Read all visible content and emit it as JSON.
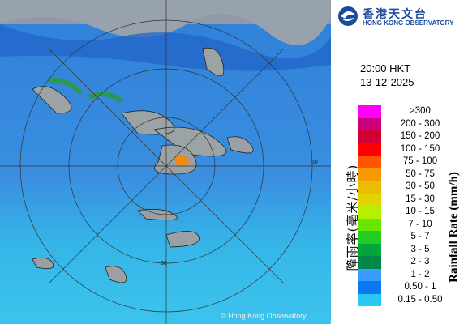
{
  "logo": {
    "chinese": "香港天文台",
    "english": "HONG KONG OBSERVATORY"
  },
  "time": "20:00 HKT",
  "date": "13-12-2025",
  "legend": {
    "title_chinese": "降雨率(毫米/小時)",
    "title_english": "Rainfall Rate (mm/h)",
    "items": [
      {
        "label": ">300",
        "color": "#ff00ff"
      },
      {
        "label": "200 - 300",
        "color": "#c8007a"
      },
      {
        "label": "150 - 200",
        "color": "#d20032"
      },
      {
        "label": "100 - 150",
        "color": "#ff0000"
      },
      {
        "label": "75 - 100",
        "color": "#ff5500"
      },
      {
        "label": "50 - 75",
        "color": "#f59a00"
      },
      {
        "label": "30 - 50",
        "color": "#ebbd00"
      },
      {
        "label": "15 - 30",
        "color": "#e2d400"
      },
      {
        "label": "10 - 15",
        "color": "#b4f000"
      },
      {
        "label": "7 - 10",
        "color": "#66e600"
      },
      {
        "label": "5 - 7",
        "color": "#22cc22"
      },
      {
        "label": "3 - 5",
        "color": "#00a63c"
      },
      {
        "label": "2 - 3",
        "color": "#00884a"
      },
      {
        "label": "1 - 2",
        "color": "#3c9bff"
      },
      {
        "label": "0.50 - 1",
        "color": "#0a78f0"
      },
      {
        "label": "0.15 - 0.50",
        "color": "#28c8f5"
      }
    ]
  },
  "map": {
    "ring_labels": [
      "60",
      "60"
    ]
  },
  "copyright": "© Hong Kong Observatory"
}
